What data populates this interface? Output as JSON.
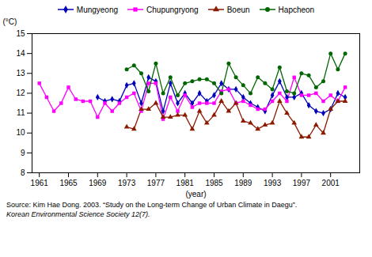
{
  "chart_data": {
    "type": "line",
    "x": [
      1961,
      1962,
      1963,
      1964,
      1965,
      1966,
      1967,
      1968,
      1969,
      1970,
      1971,
      1972,
      1973,
      1974,
      1975,
      1976,
      1977,
      1978,
      1979,
      1980,
      1981,
      1982,
      1983,
      1984,
      1985,
      1986,
      1987,
      1988,
      1989,
      1990,
      1991,
      1992,
      1993,
      1994,
      1995,
      1996,
      1997,
      1998,
      1999,
      2000,
      2001,
      2002,
      2003
    ],
    "series": [
      {
        "name": "Mungyeong",
        "color": "#0000BB",
        "marker": "diamond",
        "values": [
          null,
          null,
          null,
          null,
          null,
          null,
          null,
          null,
          11.8,
          11.6,
          11.7,
          11.6,
          12.4,
          12.5,
          11.5,
          12.8,
          12.6,
          11.1,
          12.5,
          11.5,
          12.0,
          11.5,
          12.0,
          11.6,
          11.9,
          12.5,
          12.2,
          12.2,
          11.8,
          11.5,
          11.3,
          11.1,
          11.9,
          12.6,
          11.8,
          11.8,
          12.0,
          11.4,
          11.1,
          11.0,
          11.2,
          12.0,
          11.8
        ]
      },
      {
        "name": "Chupungryong",
        "color": "#FF00FF",
        "marker": "square",
        "values": [
          12.5,
          11.8,
          11.1,
          11.5,
          12.3,
          11.7,
          11.6,
          11.6,
          10.8,
          11.5,
          11.1,
          11.5,
          11.8,
          12.0,
          11.1,
          12.5,
          12.5,
          10.7,
          11.8,
          11.1,
          11.9,
          11.3,
          11.5,
          11.5,
          11.5,
          12.1,
          12.2,
          11.5,
          11.6,
          11.4,
          11.2,
          11.2,
          11.6,
          12.0,
          11.6,
          12.8,
          11.9,
          11.9,
          12.0,
          11.6,
          11.9,
          11.6,
          12.3
        ]
      },
      {
        "name": "Boeun",
        "color": "#8B1A00",
        "marker": "triangle",
        "values": [
          null,
          null,
          null,
          null,
          null,
          null,
          null,
          null,
          null,
          null,
          null,
          null,
          10.3,
          10.2,
          11.2,
          11.2,
          11.5,
          10.8,
          10.8,
          10.9,
          10.9,
          10.2,
          11.1,
          10.5,
          10.9,
          11.6,
          11.1,
          11.5,
          10.6,
          10.5,
          10.2,
          10.4,
          10.5,
          11.6,
          11.0,
          10.5,
          9.8,
          9.8,
          10.4,
          10.0,
          11.2,
          11.6,
          11.6
        ]
      },
      {
        "name": "Hapcheon",
        "color": "#006600",
        "marker": "circle",
        "values": [
          null,
          null,
          null,
          null,
          null,
          null,
          null,
          null,
          null,
          null,
          null,
          null,
          13.2,
          13.4,
          13.0,
          12.1,
          13.5,
          12.0,
          12.8,
          11.9,
          12.5,
          12.6,
          12.7,
          12.7,
          12.5,
          12.0,
          13.5,
          12.8,
          12.4,
          12.0,
          12.8,
          12.5,
          12.2,
          13.3,
          12.1,
          12.0,
          13.0,
          12.9,
          12.3,
          12.6,
          14.0,
          13.2,
          14.0
        ]
      }
    ],
    "xlim": [
      1960,
      2005
    ],
    "xticks": [
      1961,
      1965,
      1969,
      1973,
      1977,
      1981,
      1985,
      1989,
      1993,
      1997,
      2001
    ],
    "ylim": [
      8,
      15
    ],
    "yticks": [
      8,
      9,
      10,
      11,
      12,
      13,
      14,
      15
    ],
    "xlabel": "(year)",
    "ylabel": "(°C)",
    "grid": false,
    "legend": "top",
    "annotations": [
      "Source: Kim Hae Dong. 2003. “Study on the Long-term Change of Urban Climate in Daegu”.",
      "Korean Environmental Science Society 12(7)."
    ]
  }
}
